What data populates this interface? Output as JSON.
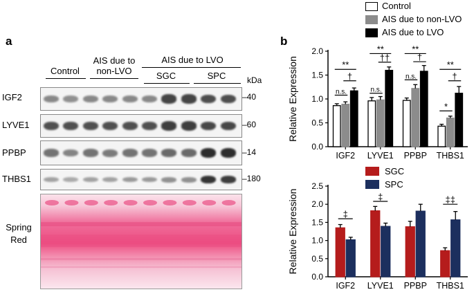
{
  "panel_a": {
    "label": "a",
    "groups": {
      "control": "Control",
      "non_lvo": "AIS due to\nnon-LVO",
      "lvo": "AIS due to LVO",
      "sgc": "SGC",
      "spc": "SPC"
    },
    "kda_label": "kDa",
    "rows": [
      {
        "name": "IGF2",
        "kda": "–40",
        "color": "#222222",
        "intensity": [
          0.45,
          0.4,
          0.45,
          0.45,
          0.45,
          0.45,
          0.85,
          0.85,
          0.8,
          0.8
        ]
      },
      {
        "name": "LYVE1",
        "kda": "–60",
        "color": "#1a1a1a",
        "intensity": [
          0.75,
          0.75,
          0.75,
          0.75,
          0.75,
          0.75,
          0.85,
          0.85,
          0.8,
          0.8
        ]
      },
      {
        "name": "PPBP",
        "kda": "–14",
        "color": "#1a1a1a",
        "intensity": [
          0.55,
          0.45,
          0.55,
          0.5,
          0.55,
          0.55,
          0.6,
          0.6,
          0.95,
          0.95
        ]
      },
      {
        "name": "THBS1",
        "kda": "–180",
        "color": "#222222",
        "intensity": [
          0.3,
          0.25,
          0.3,
          0.3,
          0.35,
          0.35,
          0.4,
          0.4,
          0.95,
          0.9
        ]
      }
    ],
    "stain_label": "Spring\nRed",
    "stain_color": "#ee4f83"
  },
  "panel_b": {
    "label": "b",
    "legend": [
      "Control",
      "AIS due to non-LVO",
      "AIS due to LVO"
    ]
  },
  "chart_data": [
    {
      "type": "bar",
      "ylabel": "Relative Expression",
      "categories": [
        "IGF2",
        "LYVE1",
        "PPBP",
        "THBS1"
      ],
      "ylim": [
        0,
        2.0
      ],
      "yticks": [
        "0.0",
        "0.5",
        "1.0",
        "1.5",
        "2.0"
      ],
      "series": [
        {
          "name": "Control",
          "fill": "#ffffff",
          "values": [
            0.86,
            0.96,
            0.97,
            0.43
          ],
          "errors": [
            0.04,
            0.07,
            0.05,
            0.04
          ]
        },
        {
          "name": "AIS due to non-LVO",
          "fill": "#8c8c8c",
          "values": [
            0.89,
            0.98,
            1.22,
            0.6
          ],
          "errors": [
            0.05,
            0.07,
            0.08,
            0.04
          ]
        },
        {
          "name": "AIS due to LVO",
          "fill": "#000000",
          "values": [
            1.17,
            1.6,
            1.58,
            1.12
          ],
          "errors": [
            0.06,
            0.07,
            0.12,
            0.14
          ]
        }
      ],
      "annotations": [
        {
          "category": 0,
          "between": [
            0,
            2
          ],
          "text": "**",
          "y": 1.62
        },
        {
          "category": 0,
          "between": [
            1,
            2
          ],
          "text": "†",
          "y": 1.38
        },
        {
          "category": 0,
          "between": [
            0,
            1
          ],
          "text": "n.s.",
          "y": 1.08
        },
        {
          "category": 1,
          "between": [
            0,
            2
          ],
          "text": "**",
          "y": 1.95
        },
        {
          "category": 1,
          "between": [
            1,
            2
          ],
          "text": "††",
          "y": 1.77
        },
        {
          "category": 1,
          "between": [
            0,
            1
          ],
          "text": "n.s.",
          "y": 1.12
        },
        {
          "category": 2,
          "between": [
            0,
            2
          ],
          "text": "**",
          "y": 1.95
        },
        {
          "category": 2,
          "between": [
            1,
            2
          ],
          "text": "†",
          "y": 1.78
        },
        {
          "category": 2,
          "between": [
            0,
            1
          ],
          "text": "n.s.",
          "y": 1.4
        },
        {
          "category": 3,
          "between": [
            0,
            2
          ],
          "text": "**",
          "y": 1.62
        },
        {
          "category": 3,
          "between": [
            1,
            2
          ],
          "text": "†",
          "y": 1.38
        },
        {
          "category": 3,
          "between": [
            0,
            1
          ],
          "text": "*",
          "y": 0.75
        }
      ]
    },
    {
      "type": "bar",
      "ylabel": "Relative Expression",
      "categories": [
        "IGF2",
        "LYVE1",
        "PPBP",
        "THBS1"
      ],
      "ylim": [
        0,
        2.5
      ],
      "yticks": [
        "0.0",
        "0.5",
        "1.0",
        "1.5",
        "2.0",
        "2.5"
      ],
      "series": [
        {
          "name": "SGC",
          "fill": "#b51c1c",
          "values": [
            1.35,
            1.82,
            1.38,
            0.72
          ],
          "errors": [
            0.09,
            0.12,
            0.15,
            0.08
          ]
        },
        {
          "name": "SPC",
          "fill": "#1c2f5e",
          "values": [
            1.02,
            1.39,
            1.81,
            1.57
          ],
          "errors": [
            0.07,
            0.09,
            0.19,
            0.23
          ]
        }
      ],
      "annotations": [
        {
          "category": 0,
          "between": [
            0,
            1
          ],
          "text": "‡",
          "y": 1.6
        },
        {
          "category": 1,
          "between": [
            0,
            1
          ],
          "text": "‡",
          "y": 2.08
        },
        {
          "category": 3,
          "between": [
            0,
            1
          ],
          "text": "‡‡",
          "y": 2.0
        }
      ]
    }
  ]
}
